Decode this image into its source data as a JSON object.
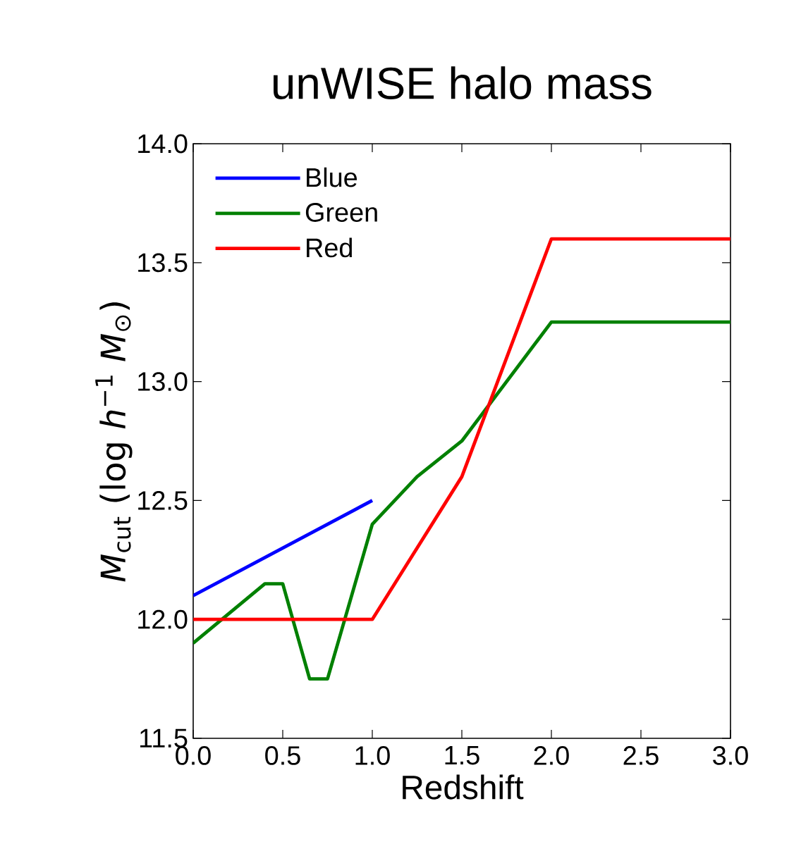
{
  "chart_data": {
    "type": "line",
    "title": "unWISE halo mass",
    "xlabel": "Redshift",
    "ylabel": "*M*$_{cut}$ (log *h*$^{−1}$ *M*$_{⊙}$)",
    "xlim": [
      0,
      3
    ],
    "ylim": [
      11.5,
      14
    ],
    "xticks": [
      {
        "value": 0,
        "label": "0.0"
      },
      {
        "value": 0.5,
        "label": "0.5"
      },
      {
        "value": 1,
        "label": "1.0"
      },
      {
        "value": 1.5,
        "label": "1.5"
      },
      {
        "value": 2,
        "label": "2.0"
      },
      {
        "value": 2.5,
        "label": "2.5"
      },
      {
        "value": 3,
        "label": "3.0"
      }
    ],
    "yticks": [
      {
        "value": 11.5,
        "label": "11.5"
      },
      {
        "value": 12,
        "label": "12.0"
      },
      {
        "value": 12.5,
        "label": "12.5"
      },
      {
        "value": 13,
        "label": "13.0"
      },
      {
        "value": 13.5,
        "label": "13.5"
      },
      {
        "value": 14,
        "label": "14.0"
      }
    ],
    "grid": false,
    "legend": "top left",
    "marker": "none",
    "line_style": "solid",
    "series": [
      {
        "name": "Blue",
        "color": "#0000ff",
        "x": [
          0,
          1
        ],
        "values": [
          12.1,
          12.5
        ]
      },
      {
        "name": "Green",
        "color": "#008000",
        "x": [
          0,
          0.4,
          0.5,
          0.65,
          0.75,
          1.0,
          1.25,
          1.5,
          2.0,
          3.0
        ],
        "values": [
          11.9,
          12.15,
          12.15,
          11.75,
          11.75,
          12.4,
          12.6,
          12.75,
          13.25,
          13.25
        ]
      },
      {
        "name": "Red",
        "color": "#ff0000",
        "x": [
          0,
          1,
          1.5,
          2,
          3
        ],
        "values": [
          12,
          12,
          12.6,
          13.6,
          13.6
        ]
      }
    ]
  }
}
